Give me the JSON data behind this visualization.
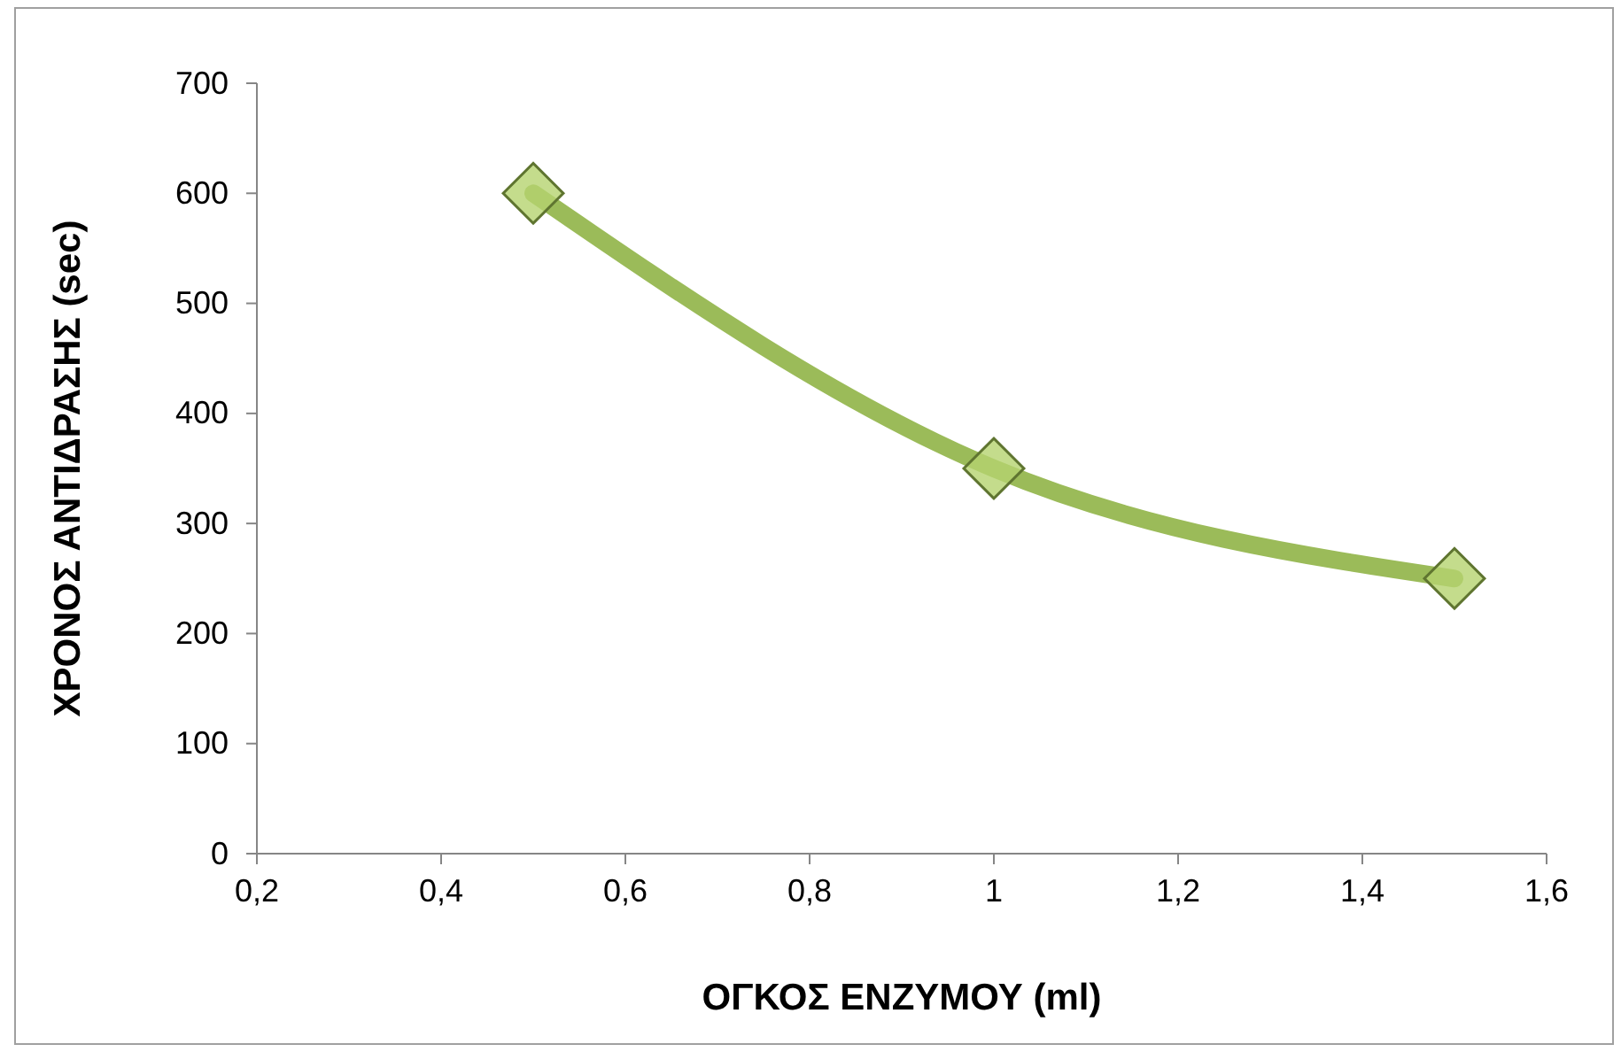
{
  "chart_data": {
    "type": "line",
    "xlabel": "ΟΓΚΟΣ ΕΝΖΥΜΟΥ (ml)",
    "ylabel": "ΧΡΟΝΟΣ ΑΝΤΙΔΡΑΣΗΣ (sec)",
    "x": [
      0.5,
      1,
      1.5
    ],
    "series": [
      {
        "color": "#9bbb59",
        "values": [
          600,
          350,
          250
        ]
      }
    ],
    "xlim": [
      0.2,
      1.6
    ],
    "xticks": [
      {
        "value": 0.2,
        "label": "0,2"
      },
      {
        "value": 0.4,
        "label": "0,4"
      },
      {
        "value": 0.6,
        "label": "0,6"
      },
      {
        "value": 0.8,
        "label": "0,8"
      },
      1,
      {
        "value": 1.2,
        "label": "1,2"
      },
      {
        "value": 1.4,
        "label": "1,4"
      },
      {
        "value": 1.6,
        "label": "1,6"
      }
    ],
    "ylim": [
      0,
      700
    ],
    "yticks": [
      0,
      100,
      200,
      300,
      400,
      500,
      600,
      700
    ],
    "grid": false,
    "marker": "diamond",
    "line_style": "solid"
  }
}
